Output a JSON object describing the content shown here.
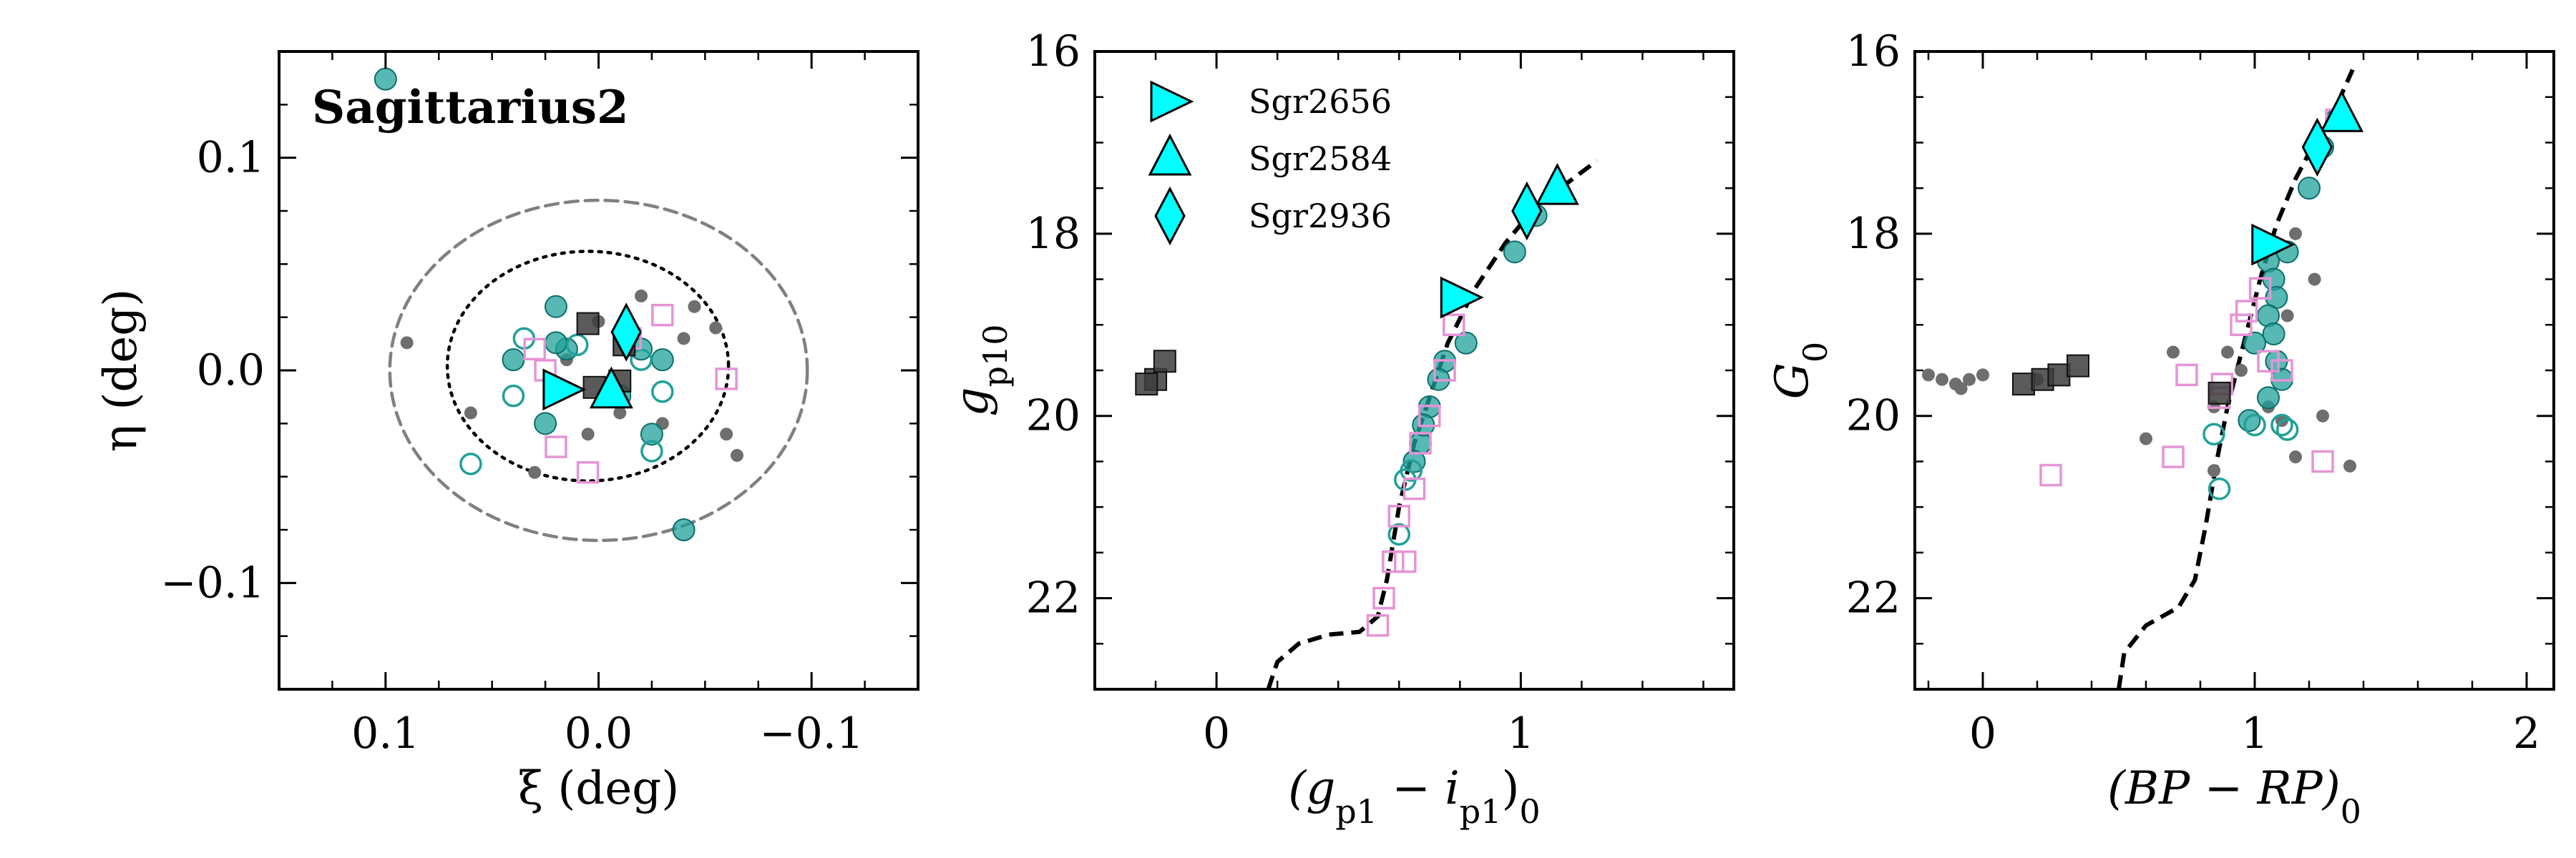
{
  "chart_data": [
    {
      "type": "scatter",
      "title": "Sagittarius2",
      "xlabel": "ξ (deg)",
      "ylabel": "η (deg)",
      "xlim": [
        0.15,
        -0.15
      ],
      "ylim": [
        -0.15,
        0.15
      ],
      "x_invert": true,
      "xticks": [
        {
          "v": 0.1,
          "label": "0.1"
        },
        {
          "v": 0.0,
          "label": "0.0"
        },
        {
          "v": -0.1,
          "label": "−0.1"
        }
      ],
      "yticks": [
        {
          "v": 0.1,
          "label": "0.1"
        },
        {
          "v": 0.0,
          "label": "0.0"
        },
        {
          "v": -0.1,
          "label": "−0.1"
        }
      ],
      "ellipses": [
        {
          "cx": 0.0,
          "cy": 0.0,
          "rx": 0.098,
          "ry": 0.08,
          "style": "dashed",
          "color": "#808080"
        },
        {
          "cx": 0.005,
          "cy": 0.002,
          "rx": 0.066,
          "ry": 0.054,
          "style": "dotted",
          "color": "#000000"
        }
      ],
      "series": [
        {
          "marker": "dot",
          "points": [
            [
              0.09,
              0.013
            ],
            [
              0.06,
              -0.02
            ],
            [
              0.03,
              -0.048
            ],
            [
              0.02,
              -0.01
            ],
            [
              0.0,
              0.023
            ],
            [
              -0.01,
              -0.02
            ],
            [
              -0.03,
              -0.025
            ],
            [
              -0.04,
              0.015
            ],
            [
              -0.055,
              0.02
            ],
            [
              -0.06,
              -0.03
            ],
            [
              -0.065,
              -0.04
            ],
            [
              -0.045,
              0.03
            ],
            [
              0.015,
              0.005
            ],
            [
              -0.02,
              0.035
            ],
            [
              0.005,
              -0.03
            ]
          ]
        },
        {
          "marker": "filled-circle",
          "points": [
            [
              0.1,
              0.137
            ],
            [
              -0.04,
              -0.075
            ],
            [
              0.04,
              0.005
            ],
            [
              0.015,
              0.01
            ],
            [
              0.02,
              0.03
            ],
            [
              -0.02,
              0.01
            ],
            [
              -0.03,
              0.005
            ],
            [
              -0.025,
              -0.03
            ],
            [
              0.025,
              -0.025
            ],
            [
              0.02,
              0.013
            ],
            [
              -0.01,
              -0.012
            ]
          ]
        },
        {
          "marker": "open-circle",
          "points": [
            [
              0.06,
              -0.044
            ],
            [
              0.035,
              0.015
            ],
            [
              0.04,
              -0.012
            ],
            [
              -0.025,
              -0.038
            ],
            [
              -0.03,
              -0.01
            ],
            [
              -0.02,
              0.005
            ],
            [
              0.01,
              0.012
            ]
          ]
        },
        {
          "marker": "open-square",
          "points": [
            [
              0.02,
              -0.036
            ],
            [
              0.005,
              -0.048
            ],
            [
              -0.03,
              0.026
            ],
            [
              -0.06,
              -0.004
            ],
            [
              -0.015,
              0.015
            ],
            [
              0.025,
              0.0
            ],
            [
              0.03,
              0.01
            ]
          ]
        },
        {
          "marker": "filled-square",
          "points": [
            [
              0.005,
              0.022
            ],
            [
              -0.012,
              0.012
            ],
            [
              0.002,
              -0.008
            ],
            [
              -0.01,
              -0.005
            ]
          ]
        }
      ],
      "stars": [
        {
          "name": "Sgr2656",
          "marker": "triangle-right",
          "x": 0.017,
          "y": -0.009
        },
        {
          "name": "Sgr2584",
          "marker": "triangle-up",
          "x": -0.006,
          "y": -0.01
        },
        {
          "name": "Sgr2936",
          "marker": "diamond",
          "x": -0.013,
          "y": 0.018
        }
      ]
    },
    {
      "type": "scatter",
      "xlabel": "(g_p1 − i_p1)_0",
      "ylabel": "g_p10",
      "xlim": [
        -0.4,
        1.7
      ],
      "ylim": [
        23.0,
        16.0
      ],
      "y_invert": true,
      "xticks": [
        {
          "v": 0,
          "label": "0"
        },
        {
          "v": 1,
          "label": "1"
        }
      ],
      "yticks": [
        {
          "v": 16,
          "label": "16"
        },
        {
          "v": 18,
          "label": "18"
        },
        {
          "v": 20,
          "label": "20"
        },
        {
          "v": 22,
          "label": "22"
        }
      ],
      "isochrone": [
        [
          0.17,
          23.0
        ],
        [
          0.2,
          22.7
        ],
        [
          0.27,
          22.5
        ],
        [
          0.37,
          22.4
        ],
        [
          0.47,
          22.37
        ],
        [
          0.53,
          22.2
        ],
        [
          0.56,
          21.8
        ],
        [
          0.6,
          21.0
        ],
        [
          0.65,
          20.3
        ],
        [
          0.7,
          19.8
        ],
        [
          0.76,
          19.2
        ],
        [
          0.85,
          18.6
        ],
        [
          0.95,
          18.1
        ],
        [
          1.05,
          17.7
        ],
        [
          1.15,
          17.45
        ],
        [
          1.25,
          17.2
        ]
      ],
      "series": [
        {
          "marker": "filled-circle",
          "points": [
            [
              0.78,
              18.7
            ],
            [
              0.82,
              19.2
            ],
            [
              0.75,
              19.4
            ],
            [
              0.73,
              19.6
            ],
            [
              0.7,
              19.9
            ],
            [
              0.67,
              20.3
            ],
            [
              0.68,
              20.1
            ],
            [
              0.65,
              20.5
            ],
            [
              0.98,
              18.2
            ],
            [
              1.05,
              17.8
            ],
            [
              1.12,
              17.5
            ]
          ]
        },
        {
          "marker": "open-circle",
          "points": [
            [
              0.64,
              20.6
            ],
            [
              0.62,
              20.7
            ],
            [
              0.6,
              21.3
            ]
          ]
        },
        {
          "marker": "open-square",
          "points": [
            [
              0.53,
              22.3
            ],
            [
              0.55,
              22.0
            ],
            [
              0.58,
              21.6
            ],
            [
              0.62,
              21.6
            ],
            [
              0.6,
              21.1
            ],
            [
              0.65,
              20.8
            ],
            [
              0.67,
              20.3
            ],
            [
              0.7,
              20.0
            ],
            [
              0.75,
              19.5
            ],
            [
              0.78,
              19.0
            ]
          ]
        },
        {
          "marker": "filled-square",
          "points": [
            [
              -0.2,
              19.6
            ],
            [
              -0.17,
              19.4
            ],
            [
              -0.23,
              19.65
            ]
          ]
        }
      ],
      "stars": [
        {
          "name": "Sgr2656",
          "marker": "triangle-right",
          "x": 0.8,
          "y": 18.7
        },
        {
          "name": "Sgr2584",
          "marker": "triangle-up",
          "x": 1.12,
          "y": 17.5
        },
        {
          "name": "Sgr2936",
          "marker": "diamond",
          "x": 1.02,
          "y": 17.75
        }
      ],
      "legend": {
        "position": "top-left",
        "entries": [
          "Sgr2656",
          "Sgr2584",
          "Sgr2936"
        ]
      }
    },
    {
      "type": "scatter",
      "xlabel": "(BP − RP)_0",
      "ylabel": "G_0",
      "xlim": [
        -0.25,
        2.1
      ],
      "ylim": [
        23.0,
        16.0
      ],
      "y_invert": true,
      "xticks": [
        {
          "v": 0,
          "label": "0"
        },
        {
          "v": 1,
          "label": "1"
        },
        {
          "v": 2,
          "label": "2"
        }
      ],
      "yticks": [
        {
          "v": 16,
          "label": "16"
        },
        {
          "v": 18,
          "label": "18"
        },
        {
          "v": 20,
          "label": "20"
        },
        {
          "v": 22,
          "label": "22"
        }
      ],
      "isochrone": [
        [
          0.5,
          23.0
        ],
        [
          0.52,
          22.6
        ],
        [
          0.6,
          22.3
        ],
        [
          0.72,
          22.1
        ],
        [
          0.78,
          21.8
        ],
        [
          0.82,
          21.2
        ],
        [
          0.86,
          20.5
        ],
        [
          0.9,
          19.9
        ],
        [
          0.96,
          19.2
        ],
        [
          1.02,
          18.5
        ],
        [
          1.08,
          17.9
        ],
        [
          1.15,
          17.4
        ],
        [
          1.22,
          17.0
        ],
        [
          1.3,
          16.6
        ],
        [
          1.36,
          16.2
        ]
      ],
      "series": [
        {
          "marker": "dot",
          "points": [
            [
              -0.2,
              19.55
            ],
            [
              -0.15,
              19.6
            ],
            [
              -0.1,
              19.65
            ],
            [
              -0.05,
              19.6
            ],
            [
              -0.08,
              19.7
            ],
            [
              0.0,
              19.55
            ],
            [
              0.2,
              19.6
            ],
            [
              0.6,
              20.25
            ],
            [
              0.85,
              20.6
            ],
            [
              0.9,
              19.3
            ],
            [
              0.95,
              19.5
            ],
            [
              1.05,
              19.9
            ],
            [
              1.1,
              20.05
            ],
            [
              1.15,
              20.45
            ],
            [
              1.25,
              20.0
            ],
            [
              1.35,
              20.55
            ],
            [
              1.12,
              18.9
            ],
            [
              1.15,
              18.0
            ],
            [
              1.22,
              18.5
            ],
            [
              0.7,
              19.3
            ],
            [
              0.85,
              19.9
            ]
          ]
        },
        {
          "marker": "filled-circle",
          "points": [
            [
              1.05,
              18.3
            ],
            [
              1.07,
              18.5
            ],
            [
              1.08,
              18.7
            ],
            [
              1.05,
              18.9
            ],
            [
              1.07,
              19.1
            ],
            [
              1.08,
              19.4
            ],
            [
              1.1,
              19.6
            ],
            [
              1.05,
              19.8
            ],
            [
              1.12,
              18.2
            ],
            [
              1.2,
              17.5
            ],
            [
              1.25,
              17.05
            ],
            [
              1.3,
              16.75
            ],
            [
              1.0,
              19.2
            ],
            [
              0.98,
              20.05
            ]
          ]
        },
        {
          "marker": "open-circle",
          "points": [
            [
              0.85,
              20.2
            ],
            [
              0.87,
              20.8
            ],
            [
              1.1,
              20.1
            ],
            [
              1.12,
              20.15
            ],
            [
              1.0,
              20.1
            ]
          ]
        },
        {
          "marker": "open-square",
          "points": [
            [
              0.25,
              20.65
            ],
            [
              0.7,
              20.45
            ],
            [
              0.75,
              19.55
            ],
            [
              0.87,
              19.8
            ],
            [
              0.88,
              19.65
            ],
            [
              0.95,
              19.0
            ],
            [
              0.97,
              18.85
            ],
            [
              1.02,
              18.6
            ],
            [
              1.05,
              19.4
            ],
            [
              1.1,
              19.5
            ],
            [
              1.25,
              20.5
            ],
            [
              1.3,
              16.75
            ]
          ]
        },
        {
          "marker": "filled-square",
          "points": [
            [
              0.15,
              19.65
            ],
            [
              0.22,
              19.6
            ],
            [
              0.28,
              19.55
            ],
            [
              0.35,
              19.45
            ],
            [
              0.87,
              19.75
            ]
          ]
        }
      ],
      "stars": [
        {
          "name": "Sgr2656",
          "marker": "triangle-right",
          "x": 1.06,
          "y": 18.12
        },
        {
          "name": "Sgr2584",
          "marker": "triangle-up",
          "x": 1.32,
          "y": 16.7
        },
        {
          "name": "Sgr2936",
          "marker": "diamond",
          "x": 1.23,
          "y": 17.05
        }
      ]
    }
  ],
  "colors": {
    "member": "#20a09a",
    "member_edge": "#0b6e6a",
    "nonmember_dot": "#6e6e6e",
    "pink": "#e594d6",
    "dark_square": "#3d3d3d",
    "star_fill": "#00ffff",
    "isochrone": "#000000"
  }
}
